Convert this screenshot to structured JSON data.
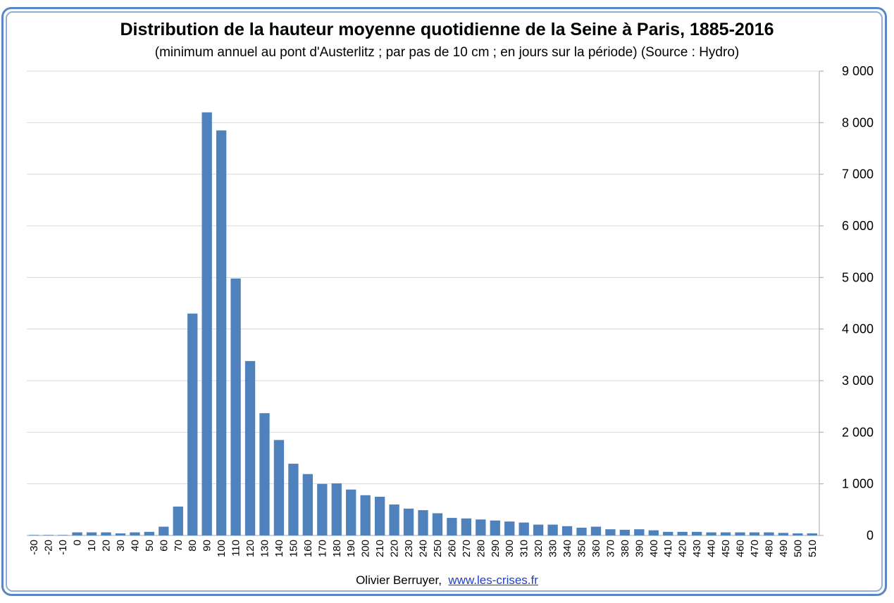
{
  "header": {
    "title": "Distribution de la hauteur moyenne quotidienne de la Seine à Paris, 1885-2016",
    "subtitle": "(minimum annuel au pont d'Austerlitz ; par pas de 10 cm ; en jours sur la période) (Source : Hydro)"
  },
  "footer": {
    "author": "Olivier Berruyer,",
    "link": "www.les-crises.fr"
  },
  "colors": {
    "bar": "#4f81bd",
    "grid": "#d9d9d9",
    "frame": "#5b87c0"
  },
  "chart_data": {
    "type": "bar",
    "title": "Distribution de la hauteur moyenne quotidienne de la Seine à Paris, 1885-2016",
    "subtitle": "(minimum annuel au pont d'Austerlitz ; par pas de 10 cm ; en jours sur la période) (Source : Hydro)",
    "xlabel": "",
    "ylabel": "",
    "ylim": [
      0,
      9000
    ],
    "y_axis_side": "right",
    "y_ticks": [
      0,
      1000,
      2000,
      3000,
      4000,
      5000,
      6000,
      7000,
      8000,
      9000
    ],
    "y_tick_labels": [
      "0",
      "1 000",
      "2 000",
      "3 000",
      "4 000",
      "5 000",
      "6 000",
      "7 000",
      "8 000",
      "9 000"
    ],
    "grid": true,
    "legend": "none",
    "categories": [
      "-30",
      "-20",
      "-10",
      "0",
      "10",
      "20",
      "30",
      "40",
      "50",
      "60",
      "70",
      "80",
      "90",
      "100",
      "110",
      "120",
      "130",
      "140",
      "150",
      "160",
      "170",
      "180",
      "190",
      "200",
      "210",
      "220",
      "230",
      "240",
      "250",
      "260",
      "270",
      "280",
      "290",
      "300",
      "310",
      "320",
      "330",
      "340",
      "350",
      "360",
      "370",
      "380",
      "390",
      "400",
      "410",
      "420",
      "430",
      "440",
      "450",
      "460",
      "470",
      "480",
      "490",
      "500",
      "510"
    ],
    "values": [
      10,
      10,
      10,
      60,
      60,
      60,
      40,
      60,
      70,
      170,
      560,
      4300,
      8200,
      7850,
      4980,
      3380,
      2370,
      1850,
      1390,
      1190,
      1000,
      1010,
      890,
      780,
      750,
      600,
      520,
      490,
      430,
      340,
      330,
      310,
      290,
      270,
      250,
      210,
      210,
      180,
      150,
      170,
      120,
      110,
      120,
      100,
      70,
      70,
      70,
      60,
      60,
      60,
      60,
      60,
      50,
      40,
      40
    ]
  }
}
